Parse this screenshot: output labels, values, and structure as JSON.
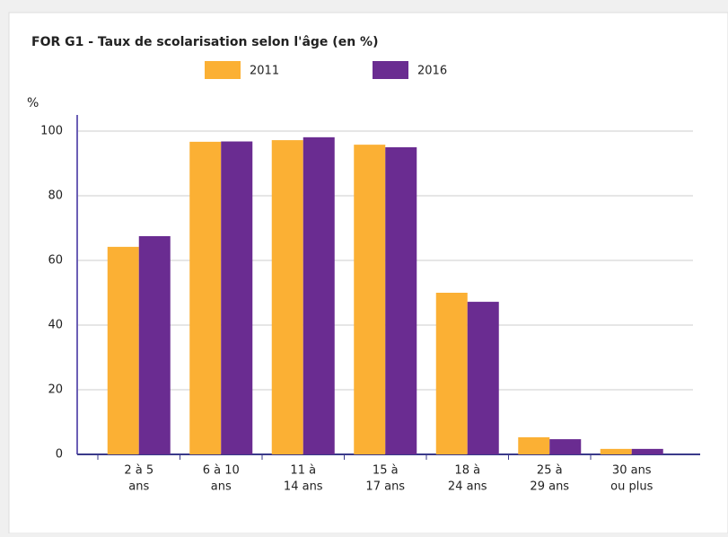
{
  "chart_data": {
    "type": "bar",
    "title": "FOR G1 - Taux de scolarisation selon l'âge (en %)",
    "y_label": "%",
    "categories": [
      [
        "2 à 5",
        "ans"
      ],
      [
        "6 à 10",
        "ans"
      ],
      [
        "11 à",
        "14 ans"
      ],
      [
        "15 à",
        "17 ans"
      ],
      [
        "18 à",
        "24 ans"
      ],
      [
        "25 à",
        "29 ans"
      ],
      [
        "30 ans",
        "ou plus"
      ]
    ],
    "series": [
      {
        "name": "2011",
        "color": "#fbb034",
        "values": [
          64.2,
          96.7,
          97.2,
          95.8,
          50.0,
          5.3,
          1.7
        ]
      },
      {
        "name": "2016",
        "color": "#6a2c91",
        "values": [
          67.5,
          96.8,
          98.1,
          95.0,
          47.2,
          4.7,
          1.7
        ]
      }
    ],
    "ylim": [
      0,
      100
    ],
    "yticks": [
      0,
      20,
      40,
      60,
      80,
      100
    ],
    "grid": true,
    "legend": "top"
  }
}
